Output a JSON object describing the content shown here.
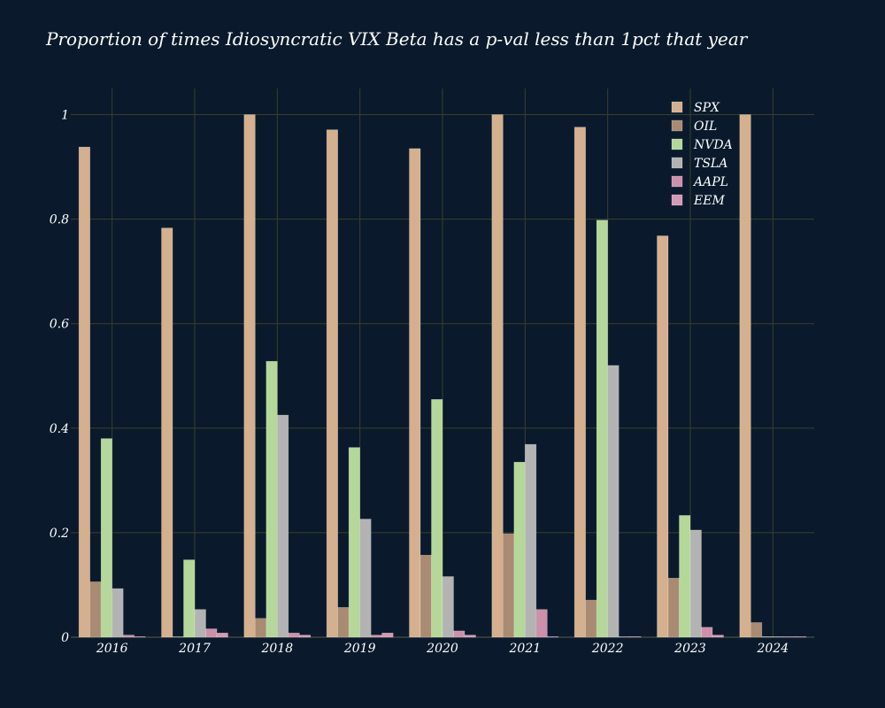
{
  "chart_data": {
    "type": "bar",
    "title": "Proportion of times Idiosyncratic VIX Beta has a p-val less than 1pct that year",
    "xlabel": "",
    "ylabel": "",
    "ylim": [
      0,
      1.05
    ],
    "yticks": [
      0,
      0.2,
      0.4,
      0.6,
      0.8,
      1
    ],
    "ytick_labels": [
      "0",
      "0.2",
      "0.4",
      "0.6",
      "0.8",
      "1"
    ],
    "categories": [
      "2016",
      "2017",
      "2018",
      "2019",
      "2020",
      "2021",
      "2022",
      "2023",
      "2024"
    ],
    "legend_position": "top-right",
    "grid": true,
    "series": [
      {
        "name": "SPX",
        "color": "#d4b08f",
        "values": [
          0.938,
          0.783,
          1.0,
          0.971,
          0.935,
          1.0,
          0.976,
          0.768,
          1.0
        ]
      },
      {
        "name": "OIL",
        "color": "#a98a72",
        "values": [
          0.106,
          0.0,
          0.036,
          0.057,
          0.157,
          0.198,
          0.071,
          0.113,
          0.028
        ]
      },
      {
        "name": "NVDA",
        "color": "#b5d89a",
        "values": [
          0.38,
          0.148,
          0.528,
          0.363,
          0.455,
          0.335,
          0.798,
          0.233,
          0.0
        ]
      },
      {
        "name": "TSLA",
        "color": "#b3b3b3",
        "values": [
          0.093,
          0.053,
          0.425,
          0.226,
          0.116,
          0.369,
          0.52,
          0.205,
          0.0
        ]
      },
      {
        "name": "AAPL",
        "color": "#cc90ab",
        "values": [
          0.004,
          0.016,
          0.008,
          0.004,
          0.012,
          0.053,
          0.0,
          0.019,
          0.0
        ]
      },
      {
        "name": "EEM",
        "color": "#d59ab5",
        "values": [
          0.0,
          0.008,
          0.004,
          0.008,
          0.004,
          0.0,
          0.0,
          0.004,
          0.0
        ]
      }
    ]
  }
}
